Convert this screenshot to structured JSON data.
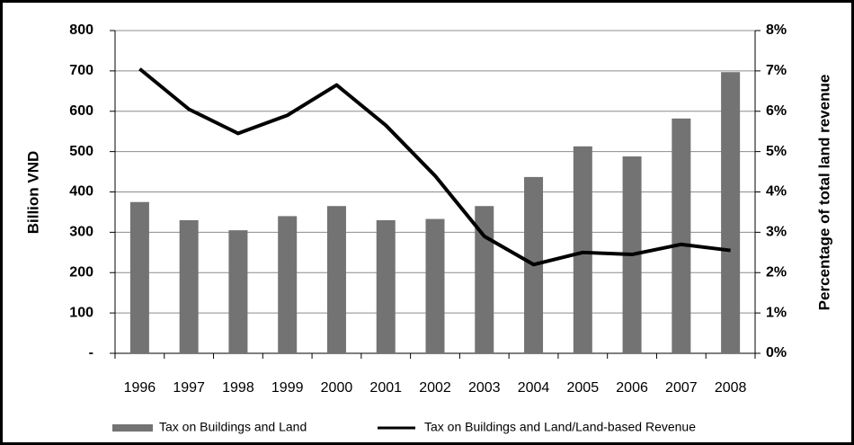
{
  "chart_data": {
    "type": "bar",
    "ylabel": "Billion VND",
    "y2label": "Percentage of total land revenue",
    "categories": [
      "1996",
      "1997",
      "1998",
      "1999",
      "2000",
      "2001",
      "2002",
      "2003",
      "2004",
      "2005",
      "2006",
      "2007",
      "2008"
    ],
    "series": [
      {
        "name": "Tax on Buildings and Land",
        "color": "#737373",
        "type": "bar",
        "values": [
          375,
          330,
          305,
          340,
          365,
          330,
          333,
          365,
          437,
          513,
          488,
          582,
          697
        ]
      },
      {
        "name": "Tax on Buildings and Land/Land-based Revenue",
        "color": "#000000",
        "type": "line",
        "axis": "y2",
        "values": [
          7.05,
          6.05,
          5.45,
          5.9,
          6.65,
          5.65,
          4.4,
          2.9,
          2.2,
          2.5,
          2.45,
          2.7,
          2.55
        ]
      }
    ],
    "ylim": [
      0,
      800
    ],
    "yticks": [
      {
        "value": 0,
        "label": "-"
      },
      100,
      200,
      300,
      400,
      500,
      600,
      700,
      800
    ],
    "y2lim": [
      0,
      8
    ],
    "y2ticks": [
      {
        "value": 0,
        "label": "0%"
      },
      {
        "value": 1,
        "label": "1%"
      },
      {
        "value": 2,
        "label": "2%"
      },
      {
        "value": 3,
        "label": "3%"
      },
      {
        "value": 4,
        "label": "4%"
      },
      {
        "value": 5,
        "label": "5%"
      },
      {
        "value": 6,
        "label": "6%"
      },
      {
        "value": 7,
        "label": "7%"
      },
      {
        "value": 8,
        "label": "8%"
      }
    ],
    "grid": true,
    "legend": "bottom"
  }
}
